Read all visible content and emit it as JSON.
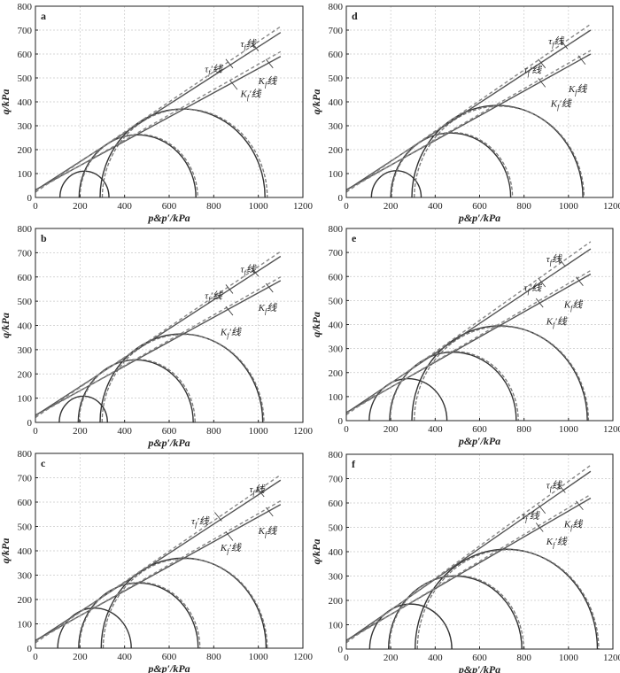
{
  "figure": {
    "x_axis_label": "p&p′/kPa",
    "y_axis_label": "q/kPa"
  },
  "chart_data": [
    {
      "type": "line",
      "panel": "a",
      "xlim": [
        0,
        1200
      ],
      "ylim": [
        0,
        800
      ],
      "x_ticks": [
        "0",
        "200",
        "400",
        "600",
        "800",
        "1000",
        "1200"
      ],
      "y_ticks": [
        "0",
        "100",
        "200",
        "300",
        "400",
        "500",
        "600",
        "700",
        "800"
      ],
      "grid": true,
      "series": [
        {
          "name": "τf线",
          "style": "solid",
          "x": [
            0,
            1100
          ],
          "y": [
            30,
            690
          ]
        },
        {
          "name": "τf′线",
          "style": "dashed",
          "x": [
            0,
            1100
          ],
          "y": [
            22,
            715
          ]
        },
        {
          "name": "Kf线",
          "style": "solid",
          "x": [
            0,
            1100
          ],
          "y": [
            32,
            590
          ]
        },
        {
          "name": "Kf′线",
          "style": "dashed",
          "x": [
            0,
            1100
          ],
          "y": [
            28,
            610
          ]
        }
      ],
      "circles": [
        {
          "center": 220,
          "radius": 110,
          "style": "solid"
        },
        {
          "center": 458,
          "radius": 262,
          "style": "solid"
        },
        {
          "center": 660,
          "radius": 370,
          "style": "solid"
        },
        {
          "center": 464,
          "radius": 264,
          "style": "dashed"
        },
        {
          "center": 670,
          "radius": 370,
          "style": "dashed"
        }
      ],
      "line_labels": [
        {
          "text": "τf线",
          "x": 920,
          "y": 630,
          "leader_x": 985,
          "leader_y": 630
        },
        {
          "text": "τf′线",
          "x": 760,
          "y": 525,
          "leader_x": 870,
          "leader_y": 560
        },
        {
          "text": "Kf线",
          "x": 1000,
          "y": 475,
          "leader_x": 1050,
          "leader_y": 560
        },
        {
          "text": "Kf′线",
          "x": 920,
          "y": 420,
          "leader_x": 890,
          "leader_y": 470
        }
      ]
    },
    {
      "type": "line",
      "panel": "d",
      "xlim": [
        0,
        1200
      ],
      "ylim": [
        0,
        800
      ],
      "x_ticks": [
        "0",
        "200",
        "400",
        "600",
        "800",
        "1000",
        "1200"
      ],
      "y_ticks": [
        "0",
        "100",
        "200",
        "300",
        "400",
        "500",
        "600",
        "700",
        "800"
      ],
      "grid": true,
      "series": [
        {
          "name": "τf线",
          "style": "solid",
          "x": [
            0,
            1100
          ],
          "y": [
            30,
            700
          ]
        },
        {
          "name": "τf′线",
          "style": "dashed",
          "x": [
            0,
            1100
          ],
          "y": [
            22,
            725
          ]
        },
        {
          "name": "Kf线",
          "style": "solid",
          "x": [
            0,
            1100
          ],
          "y": [
            32,
            600
          ]
        },
        {
          "name": "Kf′线",
          "style": "dashed",
          "x": [
            0,
            1100
          ],
          "y": [
            28,
            615
          ]
        }
      ],
      "circles": [
        {
          "center": 225,
          "radius": 112,
          "style": "solid"
        },
        {
          "center": 470,
          "radius": 270,
          "style": "solid"
        },
        {
          "center": 680,
          "radius": 385,
          "style": "solid"
        },
        {
          "center": 476,
          "radius": 272,
          "style": "dashed"
        },
        {
          "center": 688,
          "radius": 382,
          "style": "dashed"
        }
      ],
      "line_labels": [
        {
          "text": "τf线",
          "x": 910,
          "y": 640,
          "leader_x": 980,
          "leader_y": 640
        },
        {
          "text": "τf′线",
          "x": 800,
          "y": 520,
          "leader_x": 880,
          "leader_y": 560
        },
        {
          "text": "Kf线",
          "x": 1000,
          "y": 440,
          "leader_x": 1060,
          "leader_y": 575
        },
        {
          "text": "Kf′线",
          "x": 920,
          "y": 380,
          "leader_x": 880,
          "leader_y": 480
        }
      ]
    },
    {
      "type": "line",
      "panel": "b",
      "xlim": [
        0,
        1200
      ],
      "ylim": [
        0,
        800
      ],
      "x_ticks": [
        "0",
        "200",
        "400",
        "600",
        "800",
        "1000",
        "1200"
      ],
      "y_ticks": [
        "0",
        "100",
        "200",
        "300",
        "400",
        "500",
        "600",
        "700",
        "800"
      ],
      "grid": true,
      "series": [
        {
          "name": "τf线",
          "style": "solid",
          "x": [
            0,
            1100
          ],
          "y": [
            28,
            685
          ]
        },
        {
          "name": "τf′线",
          "style": "dashed",
          "x": [
            0,
            1100
          ],
          "y": [
            20,
            705
          ]
        },
        {
          "name": "Kf线",
          "style": "solid",
          "x": [
            0,
            1100
          ],
          "y": [
            30,
            585
          ]
        },
        {
          "name": "Kf′线",
          "style": "dashed",
          "x": [
            0,
            1100
          ],
          "y": [
            26,
            600
          ]
        }
      ],
      "circles": [
        {
          "center": 215,
          "radius": 108,
          "style": "solid"
        },
        {
          "center": 450,
          "radius": 258,
          "style": "solid"
        },
        {
          "center": 655,
          "radius": 365,
          "style": "solid"
        },
        {
          "center": 456,
          "radius": 260,
          "style": "dashed"
        },
        {
          "center": 662,
          "radius": 363,
          "style": "dashed"
        }
      ],
      "line_labels": [
        {
          "text": "τf线",
          "x": 920,
          "y": 620,
          "leader_x": 985,
          "leader_y": 620
        },
        {
          "text": "τf′线",
          "x": 760,
          "y": 510,
          "leader_x": 870,
          "leader_y": 550
        },
        {
          "text": "Kf线",
          "x": 1000,
          "y": 460,
          "leader_x": 1050,
          "leader_y": 555
        },
        {
          "text": "Kf′线",
          "x": 830,
          "y": 360,
          "leader_x": 870,
          "leader_y": 460
        }
      ]
    },
    {
      "type": "line",
      "panel": "e",
      "xlim": [
        0,
        1200
      ],
      "ylim": [
        0,
        800
      ],
      "x_ticks": [
        "0",
        "200",
        "400",
        "600",
        "800",
        "1000",
        "1200"
      ],
      "y_ticks": [
        "0",
        "100",
        "200",
        "300",
        "400",
        "500",
        "600",
        "700",
        "800"
      ],
      "grid": true,
      "series": [
        {
          "name": "τf线",
          "style": "solid",
          "x": [
            0,
            1100
          ],
          "y": [
            32,
            715
          ]
        },
        {
          "name": "τf′线",
          "style": "dashed",
          "x": [
            0,
            1100
          ],
          "y": [
            24,
            745
          ]
        },
        {
          "name": "Kf线",
          "style": "solid",
          "x": [
            0,
            1100
          ],
          "y": [
            34,
            610
          ]
        },
        {
          "name": "Kf′线",
          "style": "dashed",
          "x": [
            0,
            1100
          ],
          "y": [
            30,
            625
          ]
        }
      ],
      "circles": [
        {
          "center": 278,
          "radius": 175,
          "style": "solid"
        },
        {
          "center": 480,
          "radius": 285,
          "style": "solid"
        },
        {
          "center": 690,
          "radius": 395,
          "style": "solid"
        },
        {
          "center": 486,
          "radius": 288,
          "style": "dashed"
        },
        {
          "center": 698,
          "radius": 392,
          "style": "dashed"
        }
      ],
      "line_labels": [
        {
          "text": "τf线",
          "x": 900,
          "y": 660,
          "leader_x": 970,
          "leader_y": 660
        },
        {
          "text": "τf′线",
          "x": 800,
          "y": 540,
          "leader_x": 880,
          "leader_y": 575
        },
        {
          "text": "Kf线",
          "x": 980,
          "y": 470,
          "leader_x": 1050,
          "leader_y": 580
        },
        {
          "text": "Kf′线",
          "x": 900,
          "y": 400,
          "leader_x": 870,
          "leader_y": 490
        }
      ]
    },
    {
      "type": "line",
      "panel": "c",
      "xlim": [
        0,
        1200
      ],
      "ylim": [
        0,
        800
      ],
      "x_ticks": [
        "0",
        "200",
        "400",
        "600",
        "800",
        "1000",
        "1200"
      ],
      "y_ticks": [
        "0",
        "100",
        "200",
        "300",
        "400",
        "500",
        "600",
        "700",
        "800"
      ],
      "grid": true,
      "series": [
        {
          "name": "τf线",
          "style": "solid",
          "x": [
            0,
            1100
          ],
          "y": [
            30,
            690
          ]
        },
        {
          "name": "τf′线",
          "style": "dashed",
          "x": [
            0,
            1100
          ],
          "y": [
            22,
            712
          ]
        },
        {
          "name": "Kf线",
          "style": "solid",
          "x": [
            0,
            1100
          ],
          "y": [
            32,
            590
          ]
        },
        {
          "name": "Kf′线",
          "style": "dashed",
          "x": [
            0,
            1100
          ],
          "y": [
            28,
            605
          ]
        }
      ],
      "circles": [
        {
          "center": 265,
          "radius": 165,
          "style": "solid"
        },
        {
          "center": 462,
          "radius": 268,
          "style": "solid"
        },
        {
          "center": 665,
          "radius": 370,
          "style": "solid"
        },
        {
          "center": 468,
          "radius": 270,
          "style": "dashed"
        },
        {
          "center": 672,
          "radius": 368,
          "style": "dashed"
        }
      ],
      "line_labels": [
        {
          "text": "τf线",
          "x": 960,
          "y": 640,
          "leader_x": 1010,
          "leader_y": 640
        },
        {
          "text": "τf′线",
          "x": 700,
          "y": 510,
          "leader_x": 820,
          "leader_y": 540
        },
        {
          "text": "Kf线",
          "x": 1000,
          "y": 470,
          "leader_x": 1050,
          "leader_y": 560
        },
        {
          "text": "Kf′线",
          "x": 830,
          "y": 400,
          "leader_x": 870,
          "leader_y": 460
        }
      ]
    },
    {
      "type": "line",
      "panel": "f",
      "xlim": [
        0,
        1200
      ],
      "ylim": [
        0,
        800
      ],
      "x_ticks": [
        "0",
        "200",
        "400",
        "600",
        "800",
        "1000",
        "1200"
      ],
      "y_ticks": [
        "0",
        "100",
        "200",
        "300",
        "400",
        "500",
        "600",
        "700",
        "800"
      ],
      "grid": true,
      "series": [
        {
          "name": "τf线",
          "style": "solid",
          "x": [
            0,
            1100
          ],
          "y": [
            34,
            730
          ]
        },
        {
          "name": "τf′线",
          "style": "dashed",
          "x": [
            0,
            1100
          ],
          "y": [
            26,
            755
          ]
        },
        {
          "name": "Kf线",
          "style": "solid",
          "x": [
            0,
            1100
          ],
          "y": [
            36,
            620
          ]
        },
        {
          "name": "Kf′线",
          "style": "dashed",
          "x": [
            0,
            1100
          ],
          "y": [
            32,
            635
          ]
        }
      ],
      "circles": [
        {
          "center": 290,
          "radius": 185,
          "style": "solid"
        },
        {
          "center": 490,
          "radius": 300,
          "style": "solid"
        },
        {
          "center": 720,
          "radius": 410,
          "style": "solid"
        },
        {
          "center": 496,
          "radius": 302,
          "style": "dashed"
        },
        {
          "center": 728,
          "radius": 408,
          "style": "dashed"
        }
      ],
      "line_labels": [
        {
          "text": "τf线",
          "x": 900,
          "y": 660,
          "leader_x": 970,
          "leader_y": 660
        },
        {
          "text": "τf′线",
          "x": 790,
          "y": 535,
          "leader_x": 880,
          "leader_y": 575
        },
        {
          "text": "Kf线",
          "x": 980,
          "y": 500,
          "leader_x": 1050,
          "leader_y": 590
        },
        {
          "text": "Kf′线",
          "x": 900,
          "y": 430,
          "leader_x": 870,
          "leader_y": 500
        }
      ]
    }
  ]
}
